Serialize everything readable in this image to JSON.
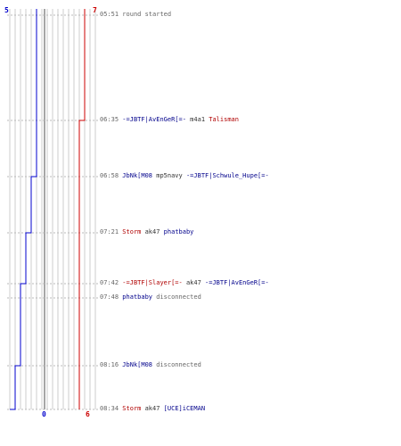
{
  "scores": {
    "blue_top": "5",
    "red_top": "7",
    "blue_bottom": "0",
    "red_bottom": "6"
  },
  "colors": {
    "blue": "#0000cc",
    "red": "#cc0000",
    "grid": "#cccccc",
    "center": "#888888"
  },
  "events": [
    {
      "time": "05:51",
      "parts": [
        {
          "text": "round started",
          "color": "grey"
        }
      ]
    },
    {
      "time": "06:35",
      "parts": [
        {
          "text": "-=JBTF|AvEnGeR[=-",
          "color": "blue"
        },
        {
          "text": "m4a1",
          "color": "plain"
        },
        {
          "text": "Talisman",
          "color": "red"
        }
      ]
    },
    {
      "time": "06:58",
      "parts": [
        {
          "text": "JbNk[M08",
          "color": "blue"
        },
        {
          "text": "mp5navy",
          "color": "plain"
        },
        {
          "text": "-=JBTF|Schwule_Hupe[=-",
          "color": "blue"
        }
      ]
    },
    {
      "time": "07:21",
      "parts": [
        {
          "text": "Storm",
          "color": "red"
        },
        {
          "text": "ak47",
          "color": "plain"
        },
        {
          "text": "phatbaby",
          "color": "blue"
        }
      ]
    },
    {
      "time": "07:42",
      "parts": [
        {
          "text": "-=JBTF|Slayer[=-",
          "color": "red"
        },
        {
          "text": "ak47",
          "color": "plain"
        },
        {
          "text": "-=JBTF|AvEnGeR[=-",
          "color": "blue"
        }
      ]
    },
    {
      "time": "07:48",
      "parts": [
        {
          "text": "phatbaby",
          "color": "blue"
        },
        {
          "text": "disconnected",
          "color": "grey"
        }
      ]
    },
    {
      "time": "08:16",
      "parts": [
        {
          "text": "JbNk[M08",
          "color": "blue"
        },
        {
          "text": "disconnected",
          "color": "grey"
        }
      ]
    },
    {
      "time": "08:34",
      "parts": [
        {
          "text": "Storm",
          "color": "red"
        },
        {
          "text": "ak47",
          "color": "plain"
        },
        {
          "text": "[UCE]iCEMAN",
          "color": "blue"
        }
      ]
    }
  ],
  "chart_data": {
    "type": "line",
    "series": [
      {
        "values": [
          5,
          5,
          4,
          3,
          2,
          2,
          1,
          0
        ]
      },
      {
        "values": [
          7,
          6,
          6,
          6,
          6,
          6,
          6,
          6
        ]
      }
    ],
    "x": [
      "05:51",
      "06:35",
      "06:58",
      "07:21",
      "07:42",
      "07:48",
      "08:16",
      "08:34"
    ],
    "ylim": [
      0,
      7
    ]
  }
}
